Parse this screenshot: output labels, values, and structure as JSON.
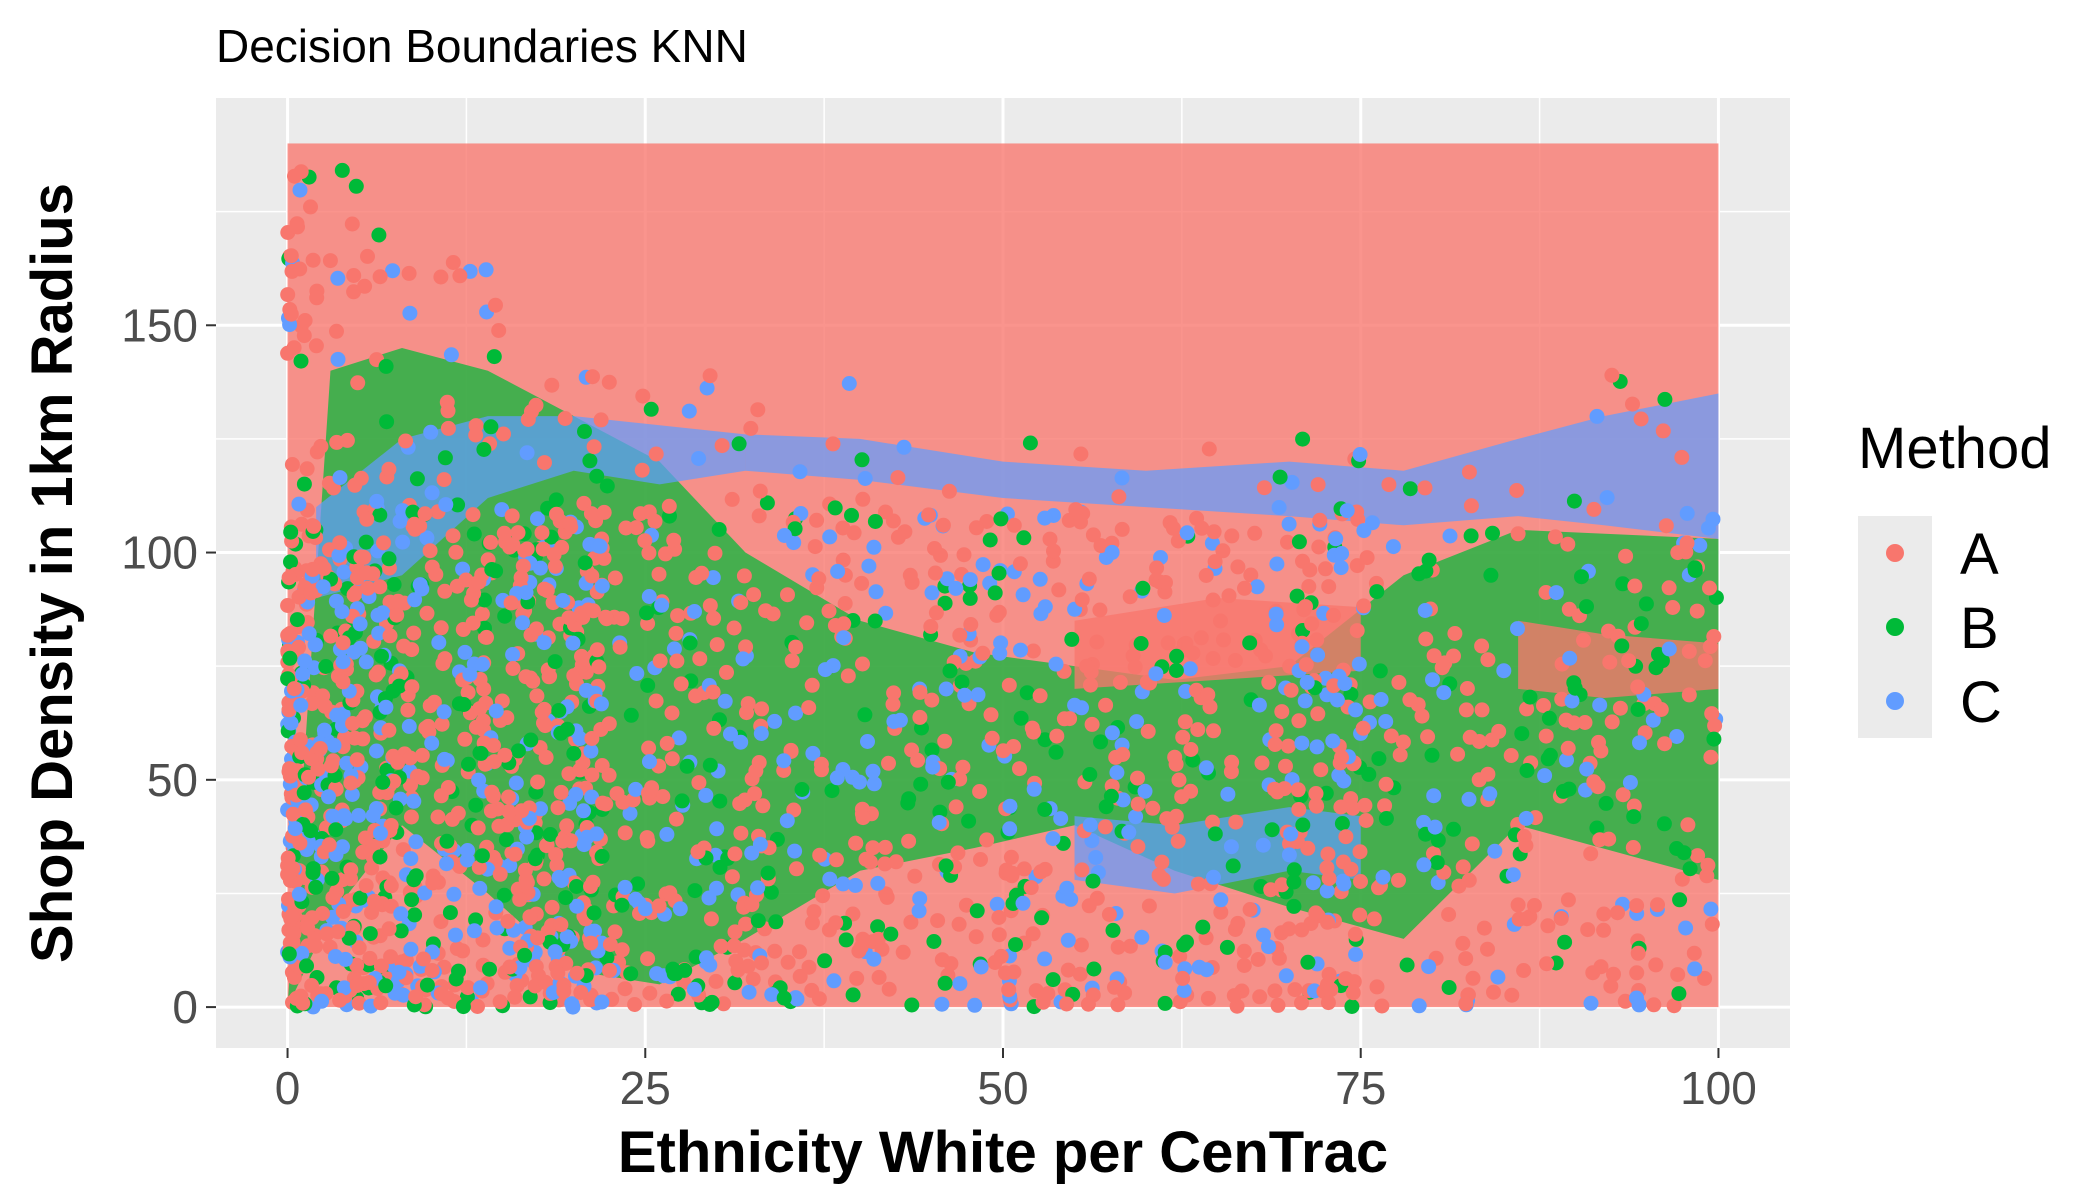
{
  "chart_data": {
    "type": "scatter",
    "title": "Decision Boundaries KNN",
    "xlabel": "Ethnicity White per CenTrac",
    "ylabel": "Shop Density in 1km Radius",
    "xlim": [
      -5,
      105
    ],
    "ylim": [
      -9,
      200
    ],
    "x_ticks": [
      0,
      25,
      50,
      75,
      100
    ],
    "x_tick_labels": [
      "0",
      "25",
      "50",
      "75",
      "100"
    ],
    "y_ticks": [
      0,
      50,
      100,
      150
    ],
    "y_tick_labels": [
      "0",
      "50",
      "100",
      "150"
    ],
    "grid": true,
    "legend": {
      "title": "Method",
      "position": "right",
      "entries": [
        {
          "label": "A",
          "color": "#F8766D"
        },
        {
          "label": "B",
          "color": "#00BA38"
        },
        {
          "label": "C",
          "color": "#619CFF"
        }
      ]
    },
    "colors": {
      "A": "#F8766D",
      "B": "#00BA38",
      "C": "#619CFF",
      "panel": "#EBEBEB",
      "grid": "#FFFFFF"
    },
    "background_grid": {
      "x_range": [
        0,
        100
      ],
      "y_range": [
        0,
        190
      ],
      "default_class": "A"
    },
    "regions": [
      {
        "class": "B",
        "x": [
          0,
          3,
          8,
          14,
          20,
          26,
          32,
          40,
          48,
          55,
          62,
          70,
          78,
          86,
          100
        ],
        "y_low": [
          0,
          20,
          40,
          25,
          8,
          5,
          15,
          30,
          35,
          40,
          30,
          22,
          15,
          40,
          28
        ],
        "y_high": [
          0,
          140,
          145,
          140,
          130,
          120,
          100,
          85,
          78,
          75,
          72,
          75,
          95,
          105,
          103
        ]
      },
      {
        "class": "C",
        "x": [
          2,
          8,
          14,
          20,
          26,
          32
        ],
        "y_low": [
          90,
          95,
          112,
          118,
          115,
          118
        ],
        "y_high": [
          110,
          125,
          130,
          130,
          128,
          126
        ]
      },
      {
        "class": "C",
        "x": [
          32,
          40,
          50,
          60,
          70,
          78,
          86,
          92,
          100
        ],
        "y_low": [
          118,
          116,
          112,
          110,
          108,
          106,
          108,
          106,
          103
        ],
        "y_high": [
          126,
          125,
          120,
          118,
          120,
          118,
          125,
          130,
          135
        ]
      },
      {
        "class": "C",
        "x": [
          55,
          62,
          70,
          75
        ],
        "y_low": [
          28,
          25,
          30,
          28
        ],
        "y_high": [
          42,
          40,
          44,
          42
        ]
      },
      {
        "class": "A",
        "x": [
          86,
          92,
          100
        ],
        "y_low": [
          70,
          68,
          70
        ],
        "y_high": [
          85,
          82,
          80
        ]
      },
      {
        "class": "A",
        "x": [
          55,
          65,
          75
        ],
        "y_low": [
          70,
          72,
          74
        ],
        "y_high": [
          85,
          90,
          88
        ]
      }
    ],
    "points_description_counts": {
      "A": 1400,
      "B": 420,
      "C": 620
    }
  }
}
